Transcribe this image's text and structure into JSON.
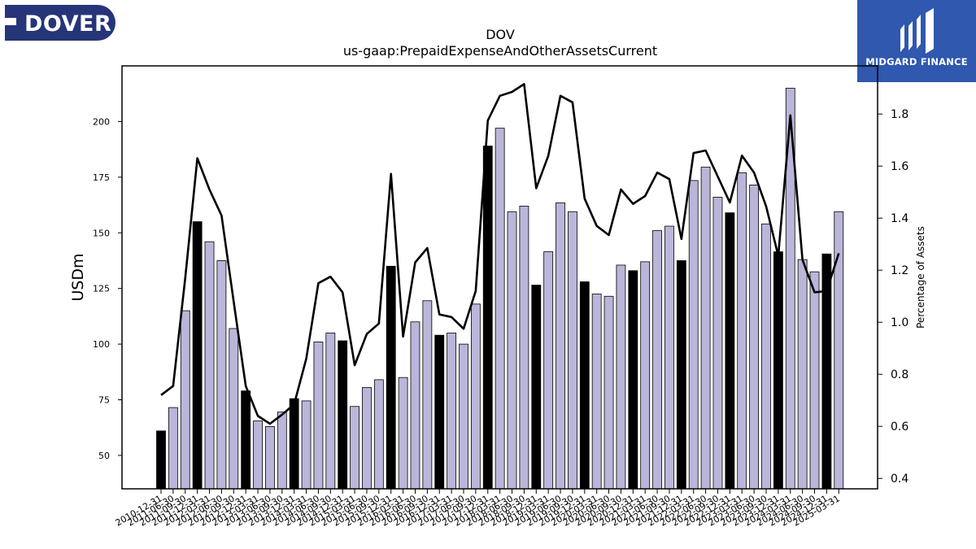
{
  "logos": {
    "left_text": "DOVER",
    "right_text": "MIDGARD FINANCE"
  },
  "chart_data": {
    "type": "bar",
    "title": "DOV",
    "subtitle": "us-gaap:PrepaidExpenseAndOtherAssetsCurrent",
    "ylabel": "USDm",
    "y2label": "Percentage of Assets",
    "ylim": [
      35,
      225
    ],
    "y2lim": [
      0.36,
      1.985
    ],
    "yticks": [
      50,
      75,
      100,
      125,
      150,
      175,
      200
    ],
    "y2ticks": [
      0.4,
      0.6,
      0.8,
      1.0,
      1.2,
      1.4,
      1.6,
      1.8
    ],
    "categories": [
      "2010-12-31",
      "2011-06-30",
      "2011-09-30",
      "2011-12-31",
      "2012-03-31",
      "2012-06-30",
      "2012-09-30",
      "2012-12-31",
      "2013-03-31",
      "2013-06-30",
      "2013-09-30",
      "2013-12-31",
      "2014-03-31",
      "2014-06-30",
      "2014-09-30",
      "2014-12-31",
      "2015-03-31",
      "2015-06-30",
      "2015-09-30",
      "2015-12-31",
      "2016-03-31",
      "2016-06-30",
      "2016-09-30",
      "2016-12-31",
      "2017-03-31",
      "2017-06-30",
      "2017-09-30",
      "2017-12-31",
      "2018-03-31",
      "2018-06-30",
      "2018-09-30",
      "2018-12-31",
      "2019-03-31",
      "2019-06-30",
      "2019-09-30",
      "2019-12-31",
      "2020-03-31",
      "2020-06-30",
      "2020-09-30",
      "2020-12-31",
      "2021-03-31",
      "2021-06-30",
      "2021-09-30",
      "2021-12-31",
      "2022-03-31",
      "2022-06-30",
      "2022-09-30",
      "2022-12-31",
      "2023-03-31",
      "2023-06-30",
      "2023-09-30",
      "2023-12-31",
      "2024-03-31",
      "2024-06-30",
      "2024-09-30",
      "2024-12-31",
      "2025-03-31"
    ],
    "series": [
      {
        "type": "bar",
        "values": [
          61,
          71.5,
          115,
          155,
          146,
          137.5,
          107,
          79,
          65.5,
          63,
          69.5,
          75.5,
          74.5,
          101,
          105,
          101.5,
          72,
          80.5,
          84,
          135,
          85,
          110,
          119.5,
          104,
          105,
          100,
          118,
          189,
          197,
          159.5,
          162,
          126.5,
          141.5,
          163.5,
          159.5,
          128,
          122.5,
          121.5,
          135.5,
          133,
          137,
          151,
          153,
          137.5,
          173.5,
          179.5,
          166,
          159,
          177,
          171.5,
          154,
          141.5,
          215,
          138,
          132.5,
          140.5,
          159.5
        ],
        "year_end_flags": [
          1,
          0,
          0,
          1,
          0,
          0,
          0,
          1,
          0,
          0,
          0,
          1,
          0,
          0,
          0,
          1,
          0,
          0,
          0,
          1,
          0,
          0,
          0,
          1,
          0,
          0,
          0,
          1,
          0,
          0,
          0,
          1,
          0,
          0,
          0,
          1,
          0,
          0,
          0,
          1,
          0,
          0,
          0,
          1,
          0,
          0,
          0,
          1,
          0,
          0,
          0,
          1,
          0,
          0,
          0,
          1,
          0
        ],
        "color_year_end": "#000000",
        "color_quarter": "#bab6d9"
      },
      {
        "type": "line",
        "values": [
          0.72,
          0.755,
          1.17,
          1.63,
          1.51,
          1.41,
          1.08,
          0.755,
          0.64,
          0.61,
          0.645,
          0.685,
          0.86,
          1.15,
          1.175,
          1.115,
          0.835,
          0.955,
          0.995,
          1.57,
          0.945,
          1.23,
          1.285,
          1.03,
          1.02,
          0.975,
          1.12,
          1.775,
          1.87,
          1.885,
          1.915,
          1.515,
          1.64,
          1.87,
          1.845,
          1.475,
          1.37,
          1.335,
          1.51,
          1.455,
          1.485,
          1.575,
          1.55,
          1.32,
          1.65,
          1.66,
          1.56,
          1.46,
          1.64,
          1.575,
          1.445,
          1.255,
          1.795,
          1.24,
          1.115,
          1.12,
          1.265
        ],
        "color": "#000000"
      }
    ]
  }
}
